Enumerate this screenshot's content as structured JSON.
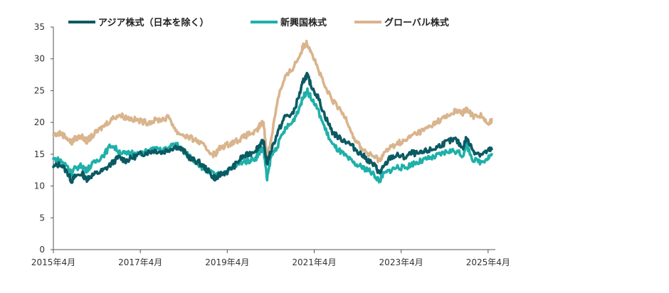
{
  "chart_data": {
    "type": "line",
    "title": "",
    "xlabel": "",
    "ylabel": "",
    "ylim": [
      0,
      35
    ],
    "yticks": [
      0,
      5,
      10,
      15,
      20,
      25,
      30,
      35
    ],
    "xlim": [
      "2015-04",
      "2025-06"
    ],
    "xticks": [
      "2015-04",
      "2017-04",
      "2019-04",
      "2021-04",
      "2023-04",
      "2025-04"
    ],
    "xtick_labels": [
      "2015年4月",
      "2017年4月",
      "2019年4月",
      "2021年4月",
      "2023年4月",
      "2025年4月"
    ],
    "grid": false,
    "legend_position": "top",
    "series": [
      {
        "name": "アジア株式（日本を除く）",
        "color": "#0b5a63",
        "points": [
          [
            "2015-04",
            13.0
          ],
          [
            "2015-06",
            13.5
          ],
          [
            "2015-08",
            12.0
          ],
          [
            "2015-09",
            10.8
          ],
          [
            "2015-10",
            11.5
          ],
          [
            "2015-12",
            12.0
          ],
          [
            "2016-01",
            11.0
          ],
          [
            "2016-02",
            11.5
          ],
          [
            "2016-04",
            12.0
          ],
          [
            "2016-06",
            12.5
          ],
          [
            "2016-08",
            13.5
          ],
          [
            "2016-10",
            14.5
          ],
          [
            "2016-12",
            14.0
          ],
          [
            "2017-02",
            14.5
          ],
          [
            "2017-04",
            15.0
          ],
          [
            "2017-06",
            15.3
          ],
          [
            "2017-08",
            15.6
          ],
          [
            "2017-10",
            15.3
          ],
          [
            "2017-12",
            15.8
          ],
          [
            "2018-02",
            16.2
          ],
          [
            "2018-04",
            15.5
          ],
          [
            "2018-06",
            14.2
          ],
          [
            "2018-08",
            13.8
          ],
          [
            "2018-10",
            12.8
          ],
          [
            "2018-12",
            11.5
          ],
          [
            "2019-01",
            11.2
          ],
          [
            "2019-02",
            11.8
          ],
          [
            "2019-04",
            12.3
          ],
          [
            "2019-06",
            13.2
          ],
          [
            "2019-08",
            14.5
          ],
          [
            "2019-10",
            15.0
          ],
          [
            "2019-12",
            15.8
          ],
          [
            "2020-01",
            16.5
          ],
          [
            "2020-02",
            17.0
          ],
          [
            "2020-03",
            13.5
          ],
          [
            "2020-04",
            15.5
          ],
          [
            "2020-06",
            18.5
          ],
          [
            "2020-08",
            21.0
          ],
          [
            "2020-10",
            21.2
          ],
          [
            "2020-12",
            24.5
          ],
          [
            "2021-01",
            26.5
          ],
          [
            "2021-02",
            27.5
          ],
          [
            "2021-03",
            26.0
          ],
          [
            "2021-05",
            24.0
          ],
          [
            "2021-07",
            21.0
          ],
          [
            "2021-09",
            18.5
          ],
          [
            "2021-11",
            17.5
          ],
          [
            "2022-01",
            17.0
          ],
          [
            "2022-03",
            16.0
          ],
          [
            "2022-05",
            15.0
          ],
          [
            "2022-07",
            14.0
          ],
          [
            "2022-09",
            13.0
          ],
          [
            "2022-10",
            12.0
          ],
          [
            "2022-11",
            12.8
          ],
          [
            "2023-01",
            14.5
          ],
          [
            "2023-03",
            14.8
          ],
          [
            "2023-05",
            14.5
          ],
          [
            "2023-07",
            15.2
          ],
          [
            "2023-09",
            15.0
          ],
          [
            "2023-11",
            15.5
          ],
          [
            "2024-01",
            15.8
          ],
          [
            "2024-03",
            16.5
          ],
          [
            "2024-05",
            17.0
          ],
          [
            "2024-07",
            17.3
          ],
          [
            "2024-09",
            16.0
          ],
          [
            "2024-10",
            17.5
          ],
          [
            "2024-12",
            15.5
          ],
          [
            "2025-02",
            15.0
          ],
          [
            "2025-04",
            15.5
          ],
          [
            "2025-05",
            15.8
          ]
        ]
      },
      {
        "name": "新興国株式",
        "color": "#1fb0a8",
        "points": [
          [
            "2015-04",
            14.3
          ],
          [
            "2015-06",
            14.0
          ],
          [
            "2015-08",
            13.0
          ],
          [
            "2015-09",
            12.0
          ],
          [
            "2015-10",
            12.8
          ],
          [
            "2015-12",
            13.2
          ],
          [
            "2016-01",
            12.5
          ],
          [
            "2016-02",
            13.0
          ],
          [
            "2016-04",
            14.0
          ],
          [
            "2016-06",
            15.0
          ],
          [
            "2016-08",
            16.5
          ],
          [
            "2016-10",
            15.5
          ],
          [
            "2016-12",
            15.0
          ],
          [
            "2017-02",
            15.3
          ],
          [
            "2017-04",
            15.0
          ],
          [
            "2017-06",
            15.5
          ],
          [
            "2017-08",
            15.8
          ],
          [
            "2017-10",
            15.5
          ],
          [
            "2017-12",
            16.0
          ],
          [
            "2018-02",
            16.8
          ],
          [
            "2018-04",
            15.3
          ],
          [
            "2018-06",
            14.5
          ],
          [
            "2018-08",
            13.5
          ],
          [
            "2018-10",
            12.5
          ],
          [
            "2018-12",
            12.0
          ],
          [
            "2019-01",
            11.5
          ],
          [
            "2019-02",
            12.0
          ],
          [
            "2019-04",
            12.3
          ],
          [
            "2019-06",
            13.0
          ],
          [
            "2019-08",
            13.8
          ],
          [
            "2019-10",
            14.0
          ],
          [
            "2019-12",
            14.5
          ],
          [
            "2020-01",
            15.5
          ],
          [
            "2020-02",
            15.8
          ],
          [
            "2020-03",
            11.0
          ],
          [
            "2020-04",
            14.5
          ],
          [
            "2020-06",
            16.5
          ],
          [
            "2020-08",
            19.0
          ],
          [
            "2020-10",
            20.0
          ],
          [
            "2020-12",
            22.5
          ],
          [
            "2021-01",
            24.0
          ],
          [
            "2021-02",
            25.0
          ],
          [
            "2021-03",
            24.0
          ],
          [
            "2021-05",
            22.0
          ],
          [
            "2021-07",
            19.0
          ],
          [
            "2021-09",
            16.5
          ],
          [
            "2021-11",
            15.5
          ],
          [
            "2022-01",
            14.5
          ],
          [
            "2022-03",
            13.5
          ],
          [
            "2022-05",
            13.0
          ],
          [
            "2022-07",
            12.5
          ],
          [
            "2022-09",
            11.5
          ],
          [
            "2022-10",
            10.8
          ],
          [
            "2022-11",
            11.8
          ],
          [
            "2023-01",
            12.5
          ],
          [
            "2023-03",
            13.0
          ],
          [
            "2023-05",
            12.8
          ],
          [
            "2023-07",
            13.5
          ],
          [
            "2023-09",
            13.8
          ],
          [
            "2023-11",
            14.2
          ],
          [
            "2024-01",
            14.5
          ],
          [
            "2024-03",
            15.0
          ],
          [
            "2024-05",
            15.5
          ],
          [
            "2024-07",
            15.5
          ],
          [
            "2024-09",
            14.8
          ],
          [
            "2024-10",
            16.5
          ],
          [
            "2024-12",
            14.0
          ],
          [
            "2025-02",
            13.8
          ],
          [
            "2025-04",
            14.5
          ],
          [
            "2025-05",
            15.0
          ]
        ]
      },
      {
        "name": "グローバル株式",
        "color": "#d9b48c",
        "points": [
          [
            "2015-04",
            18.0
          ],
          [
            "2015-06",
            18.3
          ],
          [
            "2015-08",
            17.5
          ],
          [
            "2015-09",
            16.8
          ],
          [
            "2015-10",
            17.5
          ],
          [
            "2015-12",
            17.8
          ],
          [
            "2016-01",
            17.0
          ],
          [
            "2016-02",
            17.5
          ],
          [
            "2016-04",
            18.5
          ],
          [
            "2016-06",
            19.5
          ],
          [
            "2016-08",
            20.5
          ],
          [
            "2016-10",
            21.2
          ],
          [
            "2016-12",
            20.8
          ],
          [
            "2017-02",
            20.5
          ],
          [
            "2017-04",
            20.2
          ],
          [
            "2017-06",
            20.0
          ],
          [
            "2017-08",
            20.3
          ],
          [
            "2017-10",
            20.5
          ],
          [
            "2017-12",
            20.8
          ],
          [
            "2018-02",
            18.5
          ],
          [
            "2018-04",
            18.0
          ],
          [
            "2018-06",
            17.5
          ],
          [
            "2018-08",
            17.0
          ],
          [
            "2018-10",
            16.0
          ],
          [
            "2018-12",
            15.0
          ],
          [
            "2019-01",
            15.2
          ],
          [
            "2019-02",
            16.0
          ],
          [
            "2019-04",
            16.5
          ],
          [
            "2019-06",
            17.0
          ],
          [
            "2019-08",
            17.5
          ],
          [
            "2019-10",
            18.2
          ],
          [
            "2019-12",
            18.5
          ],
          [
            "2020-01",
            19.5
          ],
          [
            "2020-02",
            20.0
          ],
          [
            "2020-03",
            14.5
          ],
          [
            "2020-04",
            17.0
          ],
          [
            "2020-06",
            24.0
          ],
          [
            "2020-08",
            27.0
          ],
          [
            "2020-10",
            28.5
          ],
          [
            "2020-12",
            30.5
          ],
          [
            "2021-01",
            32.0
          ],
          [
            "2021-02",
            32.5
          ],
          [
            "2021-03",
            31.5
          ],
          [
            "2021-05",
            28.5
          ],
          [
            "2021-07",
            25.5
          ],
          [
            "2021-09",
            23.5
          ],
          [
            "2021-11",
            22.0
          ],
          [
            "2022-01",
            20.5
          ],
          [
            "2022-03",
            17.5
          ],
          [
            "2022-05",
            16.0
          ],
          [
            "2022-07",
            15.0
          ],
          [
            "2022-09",
            14.5
          ],
          [
            "2022-10",
            14.0
          ],
          [
            "2022-11",
            15.0
          ],
          [
            "2023-01",
            16.0
          ],
          [
            "2023-03",
            16.8
          ],
          [
            "2023-05",
            17.0
          ],
          [
            "2023-07",
            18.0
          ],
          [
            "2023-09",
            18.5
          ],
          [
            "2023-11",
            19.0
          ],
          [
            "2024-01",
            19.8
          ],
          [
            "2024-03",
            20.5
          ],
          [
            "2024-05",
            21.0
          ],
          [
            "2024-07",
            21.8
          ],
          [
            "2024-09",
            21.5
          ],
          [
            "2024-10",
            22.0
          ],
          [
            "2024-12",
            21.0
          ],
          [
            "2025-02",
            21.2
          ],
          [
            "2025-04",
            19.5
          ],
          [
            "2025-05",
            20.5
          ]
        ]
      }
    ]
  }
}
